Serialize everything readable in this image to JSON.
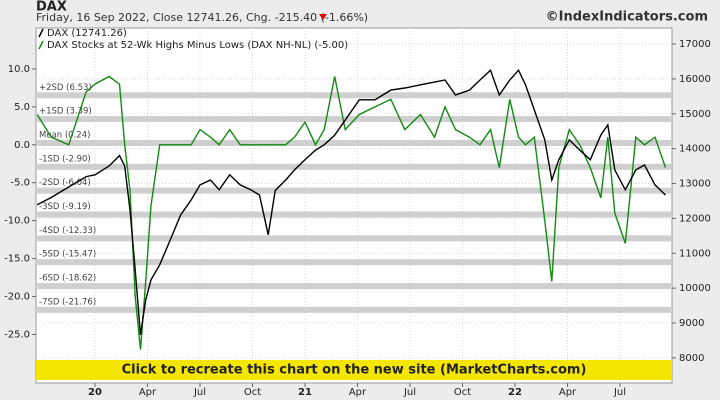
{
  "chart_data": {
    "type": "line",
    "title": "DAX",
    "subtitle": "Friday, 16 Sep 2022, Close 12741.26, Chg. -215.40 (-1.66%)",
    "source": "©IndexIndicators.com",
    "banner": "Click to recreate this chart on the new site (MarketCharts.com)",
    "x": [
      -3.3,
      -2.5,
      -1.5,
      -0.5,
      0,
      0.8,
      1.4,
      1.7,
      2.0,
      2.3,
      2.6,
      2.9,
      3.2,
      3.7,
      4.3,
      4.9,
      5.5,
      6.0,
      6.6,
      7.1,
      7.7,
      8.3,
      8.9,
      9.4,
      9.9,
      10.3,
      10.9,
      11.4,
      12.0,
      12.6,
      13.1,
      13.7,
      14.3,
      15.1,
      16.0,
      16.9,
      17.7,
      18.6,
      19.4,
      20.0,
      20.6,
      21.4,
      22.0,
      22.6,
      23.1,
      23.7,
      24.2,
      24.6,
      25.1,
      25.7,
      26.1,
      26.5,
      27.1,
      27.7,
      28.3,
      28.9,
      29.3,
      29.7,
      30.3,
      30.9,
      31.4,
      32.0,
      32.6
    ],
    "xlim": [
      -3.37,
      32.97
    ],
    "xticks": [
      {
        "value": 0,
        "label": "20"
      },
      {
        "value": 3,
        "label": "Apr"
      },
      {
        "value": 6,
        "label": "Jul"
      },
      {
        "value": 9,
        "label": "Oct"
      },
      {
        "value": 12,
        "label": "21"
      },
      {
        "value": 15,
        "label": "Apr"
      },
      {
        "value": 18,
        "label": "Jul"
      },
      {
        "value": 21,
        "label": "Oct"
      },
      {
        "value": 24,
        "label": "22"
      },
      {
        "value": 27,
        "label": "Apr"
      },
      {
        "value": 30,
        "label": "Jul"
      }
    ],
    "ylim": [
      -31.4,
      15.4
    ],
    "yticks": [
      {
        "value": 10,
        "label": "10.0"
      },
      {
        "value": 5,
        "label": "5.0"
      },
      {
        "value": 0,
        "label": "0.0"
      },
      {
        "value": -5,
        "label": "-5.0"
      },
      {
        "value": -10,
        "label": "-10.0"
      },
      {
        "value": -15,
        "label": "-15.0"
      },
      {
        "value": -20,
        "label": "-20.0"
      },
      {
        "value": -25,
        "label": "-25.0"
      }
    ],
    "y2lim": [
      7280,
      17460
    ],
    "y2ticks": [
      8000,
      9000,
      10000,
      11000,
      12000,
      13000,
      14000,
      15000,
      16000,
      17000
    ],
    "grid": true,
    "sd_bands": [
      {
        "label": "+2SD (6.53)",
        "value": 6.53
      },
      {
        "label": "+1SD (3.39)",
        "value": 3.39
      },
      {
        "label": "Mean (0.24)",
        "value": 0.24
      },
      {
        "label": "-1SD (-2.90)",
        "value": -2.9
      },
      {
        "label": "-2SD (-6.04)",
        "value": -6.04
      },
      {
        "label": "-3SD (-9.19)",
        "value": -9.19
      },
      {
        "label": "-4SD (-12.33)",
        "value": -12.33
      },
      {
        "label": "-5SD (-15.47)",
        "value": -15.47
      },
      {
        "label": "-6SD (-18.62)",
        "value": -18.62
      },
      {
        "label": "-7SD (-21.76)",
        "value": -21.76
      }
    ],
    "series": [
      {
        "name": "DAX (12741.26)",
        "color": "#000000",
        "axis": "y2",
        "values": [
          12390,
          12600,
          12900,
          13200,
          13250,
          13500,
          13800,
          13500,
          12240,
          10520,
          8660,
          9660,
          10240,
          10670,
          11380,
          12100,
          12530,
          12960,
          13100,
          12820,
          13250,
          12960,
          12820,
          12670,
          11530,
          12800,
          13100,
          13390,
          13680,
          13960,
          14110,
          14390,
          14820,
          15400,
          15400,
          15680,
          15740,
          15830,
          15910,
          15970,
          15540,
          15680,
          15970,
          16250,
          15540,
          15970,
          16250,
          15830,
          15110,
          14250,
          13100,
          13680,
          14250,
          13960,
          13680,
          14390,
          14680,
          13390,
          12820,
          13390,
          13530,
          12960,
          12670
        ]
      },
      {
        "name": "DAX Stocks at 52-Wk Highs Minus Lows (DAX NH-NL) (-5.00)",
        "color": "#138a13",
        "values": [
          4,
          1,
          0,
          7,
          8,
          9,
          8,
          0,
          -6,
          -20,
          -27,
          -18,
          -8,
          0,
          0,
          0,
          0,
          2,
          1,
          0,
          2,
          0,
          0,
          0,
          0,
          0,
          0,
          1,
          3,
          0,
          2,
          9,
          2,
          4,
          5,
          6,
          2,
          4,
          1,
          5,
          2,
          1,
          0,
          2,
          -3,
          6,
          1,
          0,
          1,
          -10,
          -18,
          -3,
          2,
          0,
          -3,
          -7,
          1,
          -9,
          -13,
          1,
          0,
          1,
          -3
        ]
      }
    ]
  }
}
